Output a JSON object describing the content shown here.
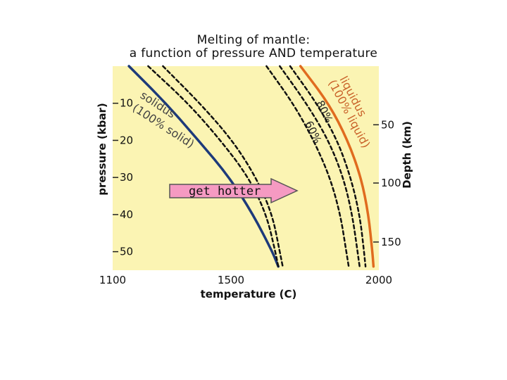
{
  "title": {
    "line1": "Melting of mantle:",
    "line2": "a function of pressure AND temperature"
  },
  "chart_data": {
    "type": "line",
    "xlabel": "temperature (C)",
    "ylabel_left": "pressure (kbar)",
    "ylabel_right": "Depth (km)",
    "xlim": [
      1100,
      2000
    ],
    "ylim": [
      0,
      55
    ],
    "x_ticks": [
      "1100",
      "1500",
      "2000"
    ],
    "y_ticks_left": [
      10,
      20,
      30,
      40,
      50
    ],
    "y_ticks_left_labels": [
      "10",
      "20",
      "30",
      "40",
      "50"
    ],
    "y_ticks_right": [
      {
        "label": "50",
        "pressure": 15.8
      },
      {
        "label": "100",
        "pressure": 31.5
      },
      {
        "label": "150",
        "pressure": 47.4
      }
    ],
    "grid": false,
    "background": "#fbf4b3",
    "series": [
      {
        "name": "solidus (100% solid)",
        "style": "solid",
        "color": "#1d3a7a",
        "points": [
          [
            1155,
            0
          ],
          [
            1280,
            10
          ],
          [
            1390,
            20
          ],
          [
            1495,
            30
          ],
          [
            1575,
            40
          ],
          [
            1640,
            50
          ],
          [
            1660,
            54
          ]
        ]
      },
      {
        "name": "",
        "style": "dashed",
        "color": "#111111",
        "points": [
          [
            1220,
            0
          ],
          [
            1355,
            10
          ],
          [
            1465,
            20
          ],
          [
            1560,
            30
          ],
          [
            1620,
            40
          ],
          [
            1650,
            50
          ],
          [
            1660,
            54
          ]
        ]
      },
      {
        "name": "",
        "style": "dashed",
        "color": "#111111",
        "points": [
          [
            1270,
            0
          ],
          [
            1395,
            10
          ],
          [
            1505,
            20
          ],
          [
            1585,
            30
          ],
          [
            1640,
            40
          ],
          [
            1665,
            50
          ],
          [
            1675,
            54
          ]
        ]
      },
      {
        "name": "60%",
        "style": "dashed",
        "color": "#111111",
        "points": [
          [
            1620,
            0
          ],
          [
            1710,
            10
          ],
          [
            1780,
            20
          ],
          [
            1835,
            30
          ],
          [
            1870,
            40
          ],
          [
            1890,
            50
          ],
          [
            1898,
            54
          ]
        ]
      },
      {
        "name": "80%",
        "style": "dashed",
        "color": "#111111",
        "points": [
          [
            1665,
            0
          ],
          [
            1755,
            10
          ],
          [
            1830,
            20
          ],
          [
            1880,
            30
          ],
          [
            1910,
            40
          ],
          [
            1928,
            50
          ],
          [
            1935,
            54
          ]
        ]
      },
      {
        "name": "",
        "style": "dashed",
        "color": "#111111",
        "points": [
          [
            1700,
            0
          ],
          [
            1790,
            10
          ],
          [
            1860,
            20
          ],
          [
            1905,
            30
          ],
          [
            1935,
            40
          ],
          [
            1950,
            50
          ],
          [
            1955,
            54
          ]
        ]
      },
      {
        "name": "liquidus (100% liquid)",
        "style": "solid",
        "color": "#e06b1f",
        "points": [
          [
            1735,
            0
          ],
          [
            1830,
            10
          ],
          [
            1895,
            20
          ],
          [
            1940,
            30
          ],
          [
            1965,
            40
          ],
          [
            1978,
            50
          ],
          [
            1982,
            54
          ]
        ]
      }
    ],
    "annotations": {
      "solidus_label": "solidus",
      "solidus_sub": "(100% solid)",
      "liquidus_label": "liquidus",
      "liquidus_sub": "(100% liquid)",
      "pct80": "80%",
      "pct60": "60%",
      "arrow_label": "get hotter",
      "arrow_color": "#f59ac2"
    }
  }
}
